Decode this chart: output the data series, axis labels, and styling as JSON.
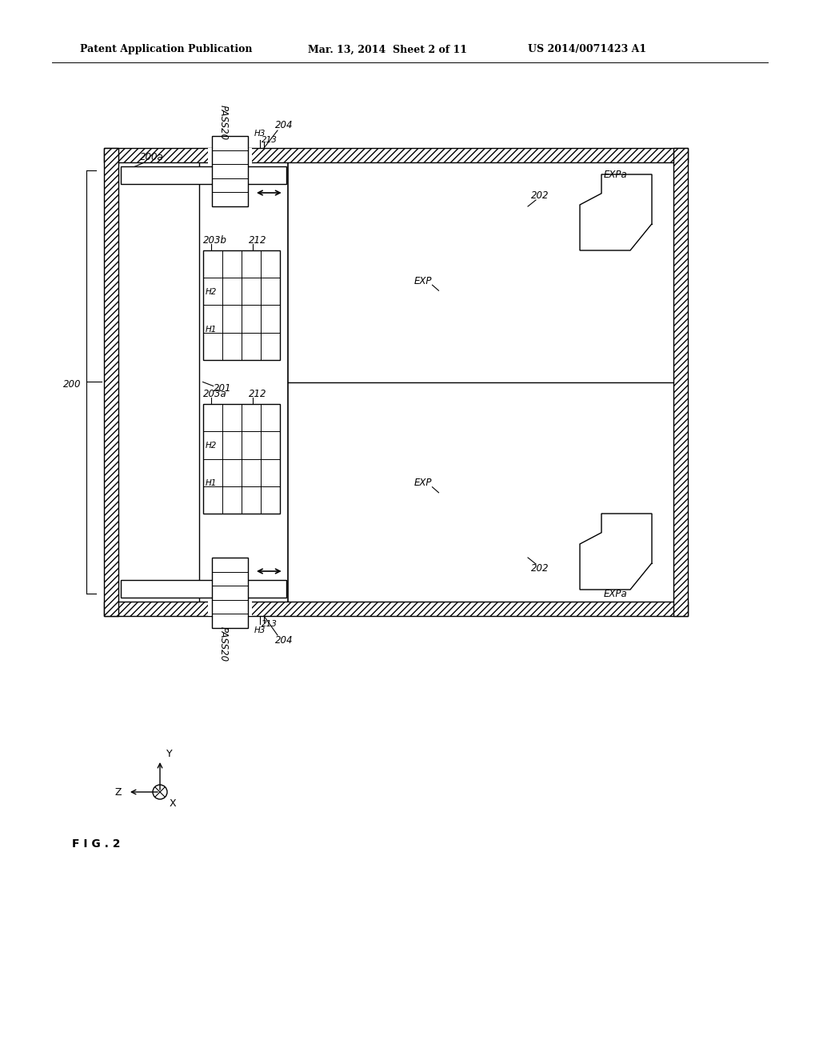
{
  "bg_color": "#ffffff",
  "header_left": "Patent Application Publication",
  "header_mid": "Mar. 13, 2014  Sheet 2 of 11",
  "header_right": "US 2014/0071423 A1",
  "fig_label": "F I G . 2"
}
